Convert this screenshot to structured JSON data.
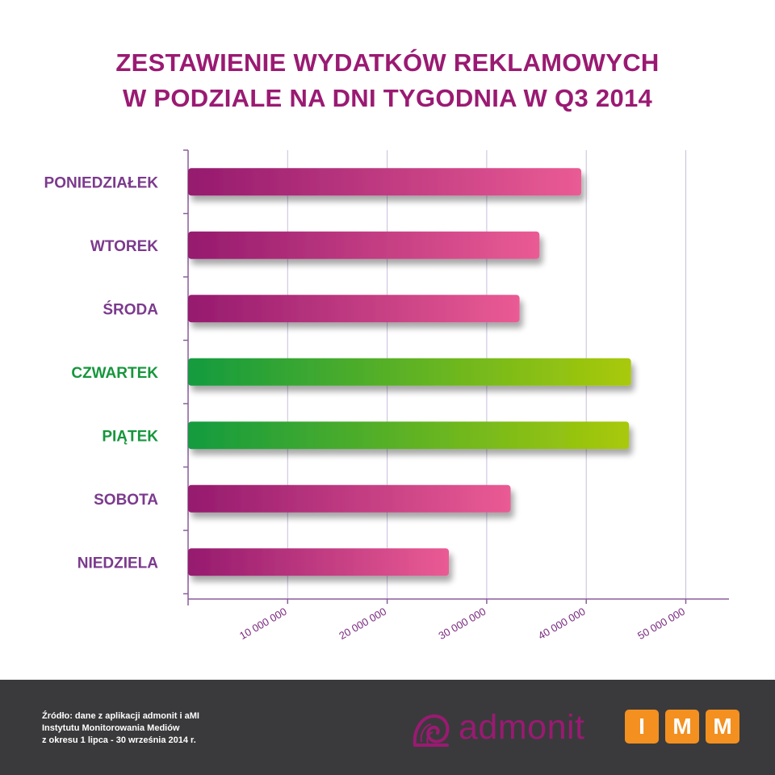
{
  "chart_data": {
    "type": "bar",
    "orientation": "horizontal",
    "title_lines": [
      "ZESTAWIENIE WYDATKÓW REKLAMOWYCH",
      "W PODZIALE NA DNI TYGODNIA W Q3 2014"
    ],
    "categories": [
      "PONIEDZIAŁEK",
      "WTOREK",
      "ŚRODA",
      "CZWARTEK",
      "PIĄTEK",
      "SOBOTA",
      "NIEDZIELA"
    ],
    "values": [
      39500000,
      35300000,
      33300000,
      44500000,
      44300000,
      32400000,
      26200000
    ],
    "highlight": [
      false,
      false,
      false,
      true,
      true,
      false,
      false
    ],
    "xlim": [
      0,
      55000000
    ],
    "ticks": [
      10000000,
      20000000,
      30000000,
      40000000,
      50000000
    ],
    "tick_labels": [
      "10 000 000",
      "20 000 000",
      "30 000 000",
      "40 000 000",
      "50 000 000"
    ],
    "grid": true,
    "xlabel": "",
    "ylabel": "",
    "colors": {
      "default_gradient": [
        "#951a6e",
        "#ea5b94"
      ],
      "highlight_gradient": [
        "#139b3f",
        "#a9c90a"
      ],
      "default_label": "#7b3a8d",
      "highlight_label": "#16963c",
      "title": "#9a1a72",
      "gridline": "#c7bfdc",
      "axis": "#8c5c9c"
    }
  },
  "footer": {
    "source_lines": [
      "Źródło: dane z aplikacji admonit i aMI",
      "Instytutu Monitorowania Mediów",
      "z okresu 1 lipca - 30 września 2014 r."
    ],
    "admonit_logo": "admonit",
    "admonit_icon": "spiral-shell-icon",
    "imm_letters": [
      "I",
      "M",
      "M"
    ],
    "colors": {
      "background": "#3a3a3c",
      "imm": "#f39020",
      "admonit": "#9a1a72"
    }
  }
}
